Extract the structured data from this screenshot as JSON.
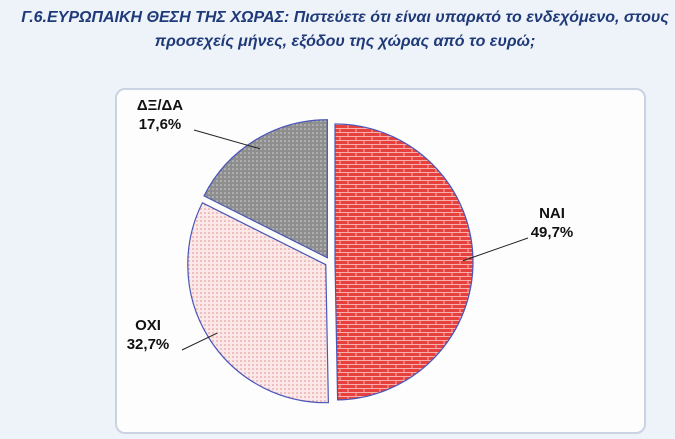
{
  "chart_data": {
    "type": "pie",
    "title": "Γ.6.ΕΥΡΩΠΑΙΚΗ ΘΕΣΗ ΤΗΣ ΧΩΡΑΣ: Πιστεύετε ότι είναι υπαρκτό το ενδεχόμενο, στους προσεχείς μήνες, εξόδου της χώρας από το ευρώ;",
    "categories": [
      "ΝΑΙ",
      "ΟΧΙ",
      "ΔΞ/ΔΑ"
    ],
    "values": [
      49.7,
      32.7,
      17.6
    ],
    "value_labels": [
      "49,7%",
      "32,7%",
      "17,6%"
    ],
    "colors": [
      "#e8403c",
      "#f7d3d3",
      "#9a9a9a"
    ]
  }
}
